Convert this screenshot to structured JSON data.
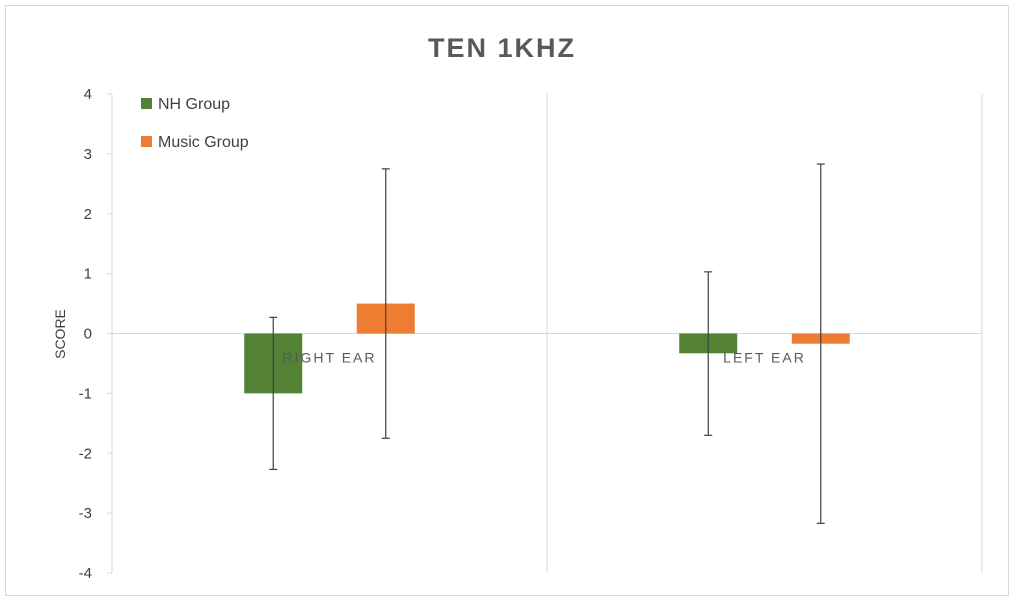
{
  "chart_data": {
    "type": "bar",
    "title": "TEN 1KHZ",
    "xlabel": "",
    "ylabel": "SCORE",
    "ylim": [
      -4,
      4
    ],
    "yticks": [
      4,
      3,
      2,
      1,
      0,
      -1,
      -2,
      -3,
      -4
    ],
    "categories": [
      "RIGHT EAR",
      "LEFT EAR"
    ],
    "series": [
      {
        "name": "NH Group",
        "color": "#548235",
        "values": [
          -1.0,
          -0.33
        ],
        "error_low": [
          -2.27,
          -1.7
        ],
        "error_high": [
          0.27,
          1.03
        ]
      },
      {
        "name": "Music Group",
        "color": "#ed7d31",
        "values": [
          0.5,
          -0.17
        ],
        "error_low": [
          -1.75,
          -3.17
        ],
        "error_high": [
          2.75,
          2.83
        ]
      }
    ],
    "legend_position": "top-left",
    "grid": false
  }
}
